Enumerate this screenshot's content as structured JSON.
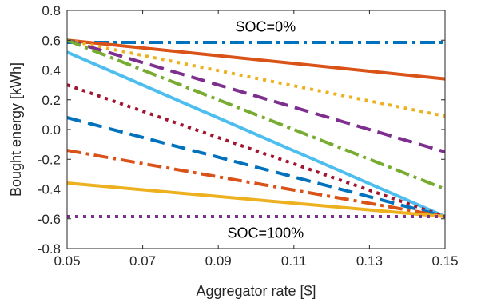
{
  "chart_data": {
    "type": "line",
    "title": "",
    "xlabel": "Aggregator rate [$]",
    "ylabel": "Bought energy [kWh]",
    "xlim": [
      0.05,
      0.15
    ],
    "ylim": [
      -0.8,
      0.8
    ],
    "xticks": [
      0.05,
      0.07,
      0.09,
      0.11,
      0.13,
      0.15
    ],
    "xtick_labels": [
      "0.05",
      "0.07",
      "0.09",
      "0.11",
      "0.13",
      "0.15"
    ],
    "yticks": [
      0.8,
      0.6,
      0.4,
      0.2,
      0.0,
      -0.2,
      -0.4,
      -0.6,
      -0.8
    ],
    "ytick_labels": [
      "0.8",
      "0.6",
      "0.4",
      "0.2",
      "0.0",
      "-0.2",
      "-0.4",
      "-0.6",
      "-0.8"
    ],
    "grid": false,
    "legend": "none",
    "annotations": [
      {
        "text": "SOC=0%",
        "x": 0.1025,
        "y": 0.69
      },
      {
        "text": "SOC=100%",
        "x": 0.1025,
        "y": -0.695
      }
    ],
    "series": [
      {
        "x": [
          0.05,
          0.15
        ],
        "y": [
          0.585,
          0.585
        ],
        "color": "#0072BD",
        "dash": "dashdot",
        "width": 4
      },
      {
        "x": [
          0.05,
          0.15
        ],
        "y": [
          0.6,
          0.34
        ],
        "color": "#D95319",
        "dash": "solid",
        "width": 4
      },
      {
        "x": [
          0.05,
          0.15
        ],
        "y": [
          0.6,
          0.09
        ],
        "color": "#EDB120",
        "dash": "dotted",
        "width": 4
      },
      {
        "x": [
          0.05,
          0.15
        ],
        "y": [
          0.6,
          -0.15
        ],
        "color": "#7E2F8E",
        "dash": "dashed",
        "width": 4
      },
      {
        "x": [
          0.05,
          0.15
        ],
        "y": [
          0.6,
          -0.4
        ],
        "color": "#77AC30",
        "dash": "dashdot",
        "width": 4
      },
      {
        "x": [
          0.05,
          0.15
        ],
        "y": [
          0.52,
          -0.585
        ],
        "color": "#4DBEEE",
        "dash": "solid",
        "width": 4
      },
      {
        "x": [
          0.05,
          0.15
        ],
        "y": [
          0.3,
          -0.585
        ],
        "color": "#A2142F",
        "dash": "dotted",
        "width": 4
      },
      {
        "x": [
          0.05,
          0.15
        ],
        "y": [
          0.08,
          -0.585
        ],
        "color": "#0072BD",
        "dash": "dashed",
        "width": 4
      },
      {
        "x": [
          0.05,
          0.15
        ],
        "y": [
          -0.14,
          -0.585
        ],
        "color": "#D95319",
        "dash": "dashdot",
        "width": 4
      },
      {
        "x": [
          0.05,
          0.15
        ],
        "y": [
          -0.36,
          -0.585
        ],
        "color": "#EDB120",
        "dash": "solid",
        "width": 4
      },
      {
        "x": [
          0.05,
          0.15
        ],
        "y": [
          -0.585,
          -0.585
        ],
        "color": "#7E2F8E",
        "dash": "dotted",
        "width": 4
      }
    ]
  }
}
